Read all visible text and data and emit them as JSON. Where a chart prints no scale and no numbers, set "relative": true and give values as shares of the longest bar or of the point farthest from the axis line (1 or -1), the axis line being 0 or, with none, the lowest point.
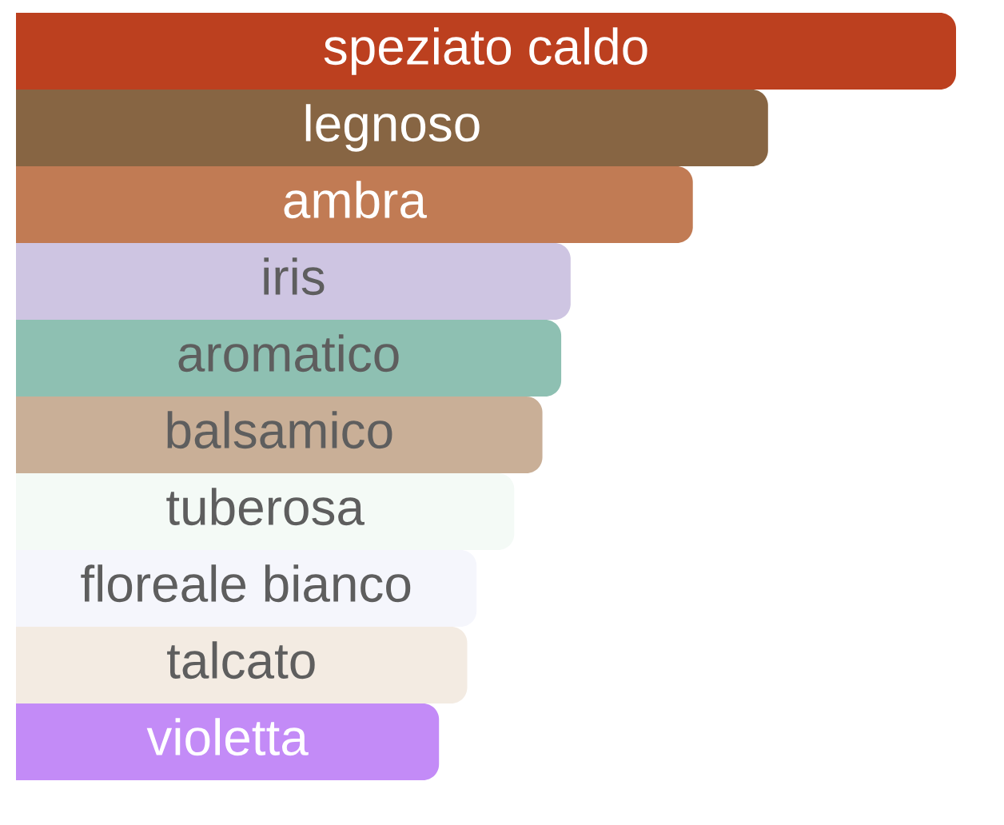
{
  "chart_data": {
    "type": "bar",
    "orientation": "horizontal",
    "relative": true,
    "categories": [
      "speziato caldo",
      "legnoso",
      "ambra",
      "iris",
      "aromatico",
      "balsamico",
      "tuberosa",
      "floreale bianco",
      "talcato",
      "violetta"
    ],
    "values": [
      1,
      0.8,
      0.72,
      0.59,
      0.58,
      0.56,
      0.53,
      0.49,
      0.48,
      0.45
    ],
    "colors": [
      "#bc401f",
      "#876543",
      "#c17b54",
      "#cec5e2",
      "#8ec0b2",
      "#c9af97",
      "#f4faf6",
      "#f5f6fc",
      "#f3ebe2",
      "#c38bf7"
    ]
  }
}
